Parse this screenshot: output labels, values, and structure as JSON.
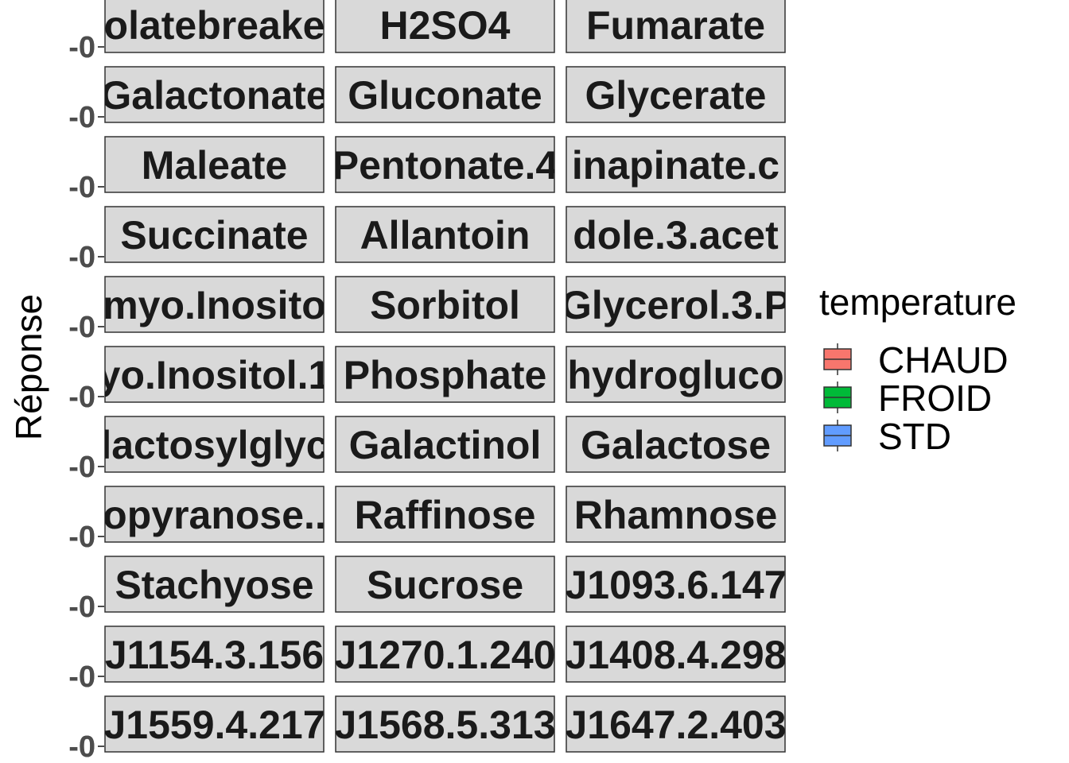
{
  "chart_data": {
    "type": "boxplot",
    "ylabel": "Réponse",
    "y_tick_labels": [
      "-0",
      "0"
    ],
    "panels": [
      "olatebreake",
      "H2SO4",
      "Fumarate",
      "Galactonate",
      "Gluconate",
      "Glycerate",
      "Maleate",
      "Pentonate.4",
      "inapinate.c",
      "Succinate",
      "Allantoin",
      "dole.3.acet",
      "myo.Inosito",
      "Sorbitol",
      "Glycerol.3.P",
      "yo.Inositol.1",
      "Phosphate",
      "hydrogluco",
      "lactosylglyc",
      "Galactinol",
      "Galactose",
      "opyranose..",
      "Raffinose",
      "Rhamnose",
      "Stachyose",
      "Sucrose",
      "J1093.6.147",
      "J1154.3.156",
      "J1270.1.240",
      "J1408.4.298",
      "J1559.4.217",
      "J1568.5.313",
      "J1647.2.403"
    ],
    "legend": {
      "title": "temperature",
      "placement": "right",
      "items": [
        {
          "label": "CHAUD",
          "color": "#F8766D"
        },
        {
          "label": "FROID",
          "color": "#00BA38"
        },
        {
          "label": "STD",
          "color": "#619CFF"
        }
      ]
    }
  },
  "colors": {
    "strip_fill": "#D9D9D9",
    "strip_border": "#333333",
    "tick_color": "#4D4D4D"
  }
}
